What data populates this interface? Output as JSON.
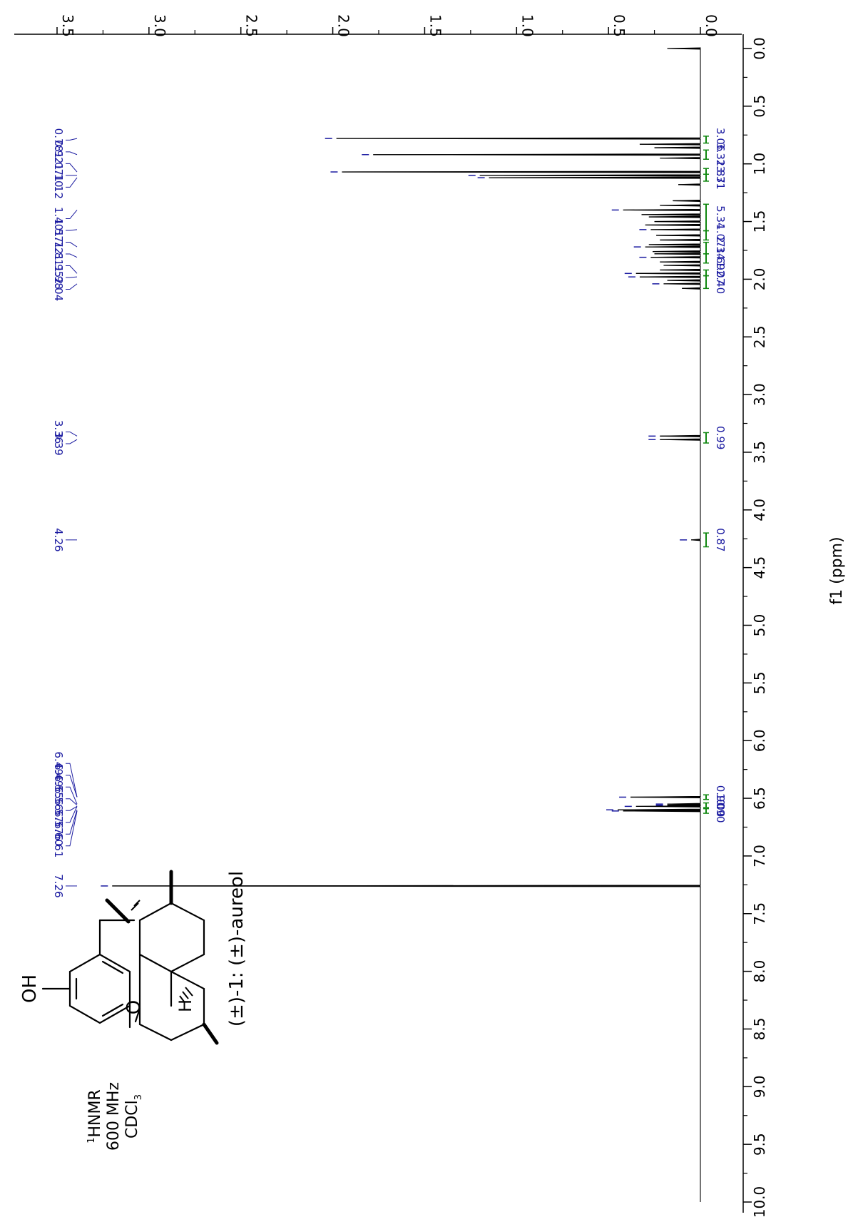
{
  "chart_data": {
    "type": "line",
    "orientation": "rotated-90-clockwise",
    "xlabel": "f1 (ppm)",
    "x_range": [
      0,
      10
    ],
    "x_ticks": [
      "0.0",
      "0.5",
      "1.0",
      "1.5",
      "2.0",
      "2.5",
      "3.0",
      "3.5",
      "4.0",
      "4.5",
      "5.0",
      "5.5",
      "6.0",
      "6.5",
      "7.0",
      "7.5",
      "8.0",
      "8.5",
      "9.0",
      "9.5",
      "10.0"
    ],
    "y_range": [
      0,
      3.5
    ],
    "y_ticks": [
      "0.0",
      "0.5",
      "1.0",
      "1.5",
      "2.0",
      "2.5",
      "3.0",
      "3.5"
    ],
    "peak_labels": [
      {
        "group": "g1",
        "values": [
          "0.78",
          "0.92",
          "1.07",
          "1.10",
          "1.12"
        ],
        "x": [
          0.78,
          0.92,
          1.07,
          1.1,
          1.12
        ]
      },
      {
        "group": "g2",
        "values": [
          "1.40",
          "1.57",
          "1.72",
          "1.81",
          "1.95",
          "1.98",
          "2.04"
        ],
        "x": [
          1.4,
          1.57,
          1.72,
          1.81,
          1.95,
          1.98,
          2.04
        ]
      },
      {
        "group": "g3",
        "values": [
          "3.36",
          "3.39"
        ],
        "x": [
          3.36,
          3.39
        ]
      },
      {
        "group": "g4",
        "values": [
          "4.26"
        ],
        "x": [
          4.26
        ]
      },
      {
        "group": "g5",
        "values": [
          "6.49",
          "6.49",
          "6.55",
          "6.56",
          "6.57",
          "6.57",
          "6.60",
          "6.61"
        ],
        "x": [
          6.49,
          6.49,
          6.55,
          6.56,
          6.57,
          6.57,
          6.6,
          6.61
        ]
      },
      {
        "group": "g6",
        "values": [
          "7.26"
        ],
        "x": [
          7.26
        ]
      }
    ],
    "integrals": [
      {
        "value": "3.06",
        "range": [
          0.76,
          0.82
        ]
      },
      {
        "value": "3.31",
        "range": [
          0.88,
          0.96
        ]
      },
      {
        "value": "2.87",
        "range": [
          1.04,
          1.09
        ]
      },
      {
        "value": "3.31",
        "range": [
          1.09,
          1.15
        ]
      },
      {
        "value": "5.34",
        "range": [
          1.35,
          1.58
        ]
      },
      {
        "value": "1.07",
        "range": [
          1.58,
          1.66
        ]
      },
      {
        "value": "2.34",
        "range": [
          1.68,
          1.78
        ]
      },
      {
        "value": "1.69",
        "range": [
          1.78,
          1.86
        ]
      },
      {
        "value": "1.07",
        "range": [
          1.92,
          1.97
        ]
      },
      {
        "value": "2.40",
        "range": [
          1.97,
          2.08
        ]
      },
      {
        "value": "0.99",
        "range": [
          3.33,
          3.42
        ]
      },
      {
        "value": "0.87",
        "range": [
          4.2,
          4.32
        ]
      },
      {
        "value": "0.90",
        "range": [
          6.47,
          6.51
        ]
      },
      {
        "value": "1.00",
        "range": [
          6.54,
          6.58
        ]
      },
      {
        "value": "0.90",
        "range": [
          6.59,
          6.63
        ]
      }
    ],
    "peaks": [
      {
        "x": 0.0,
        "y": 0.18
      },
      {
        "x": 0.78,
        "y": 1.98
      },
      {
        "x": 0.83,
        "y": 0.33
      },
      {
        "x": 0.86,
        "y": 0.25
      },
      {
        "x": 0.92,
        "y": 1.78
      },
      {
        "x": 0.95,
        "y": 0.22
      },
      {
        "x": 1.07,
        "y": 1.95
      },
      {
        "x": 1.1,
        "y": 1.2
      },
      {
        "x": 1.12,
        "y": 1.15
      },
      {
        "x": 1.18,
        "y": 0.12
      },
      {
        "x": 1.32,
        "y": 0.15
      },
      {
        "x": 1.36,
        "y": 0.22
      },
      {
        "x": 1.4,
        "y": 0.42
      },
      {
        "x": 1.44,
        "y": 0.32
      },
      {
        "x": 1.46,
        "y": 0.28
      },
      {
        "x": 1.5,
        "y": 0.25
      },
      {
        "x": 1.53,
        "y": 0.3
      },
      {
        "x": 1.57,
        "y": 0.27
      },
      {
        "x": 1.62,
        "y": 0.24
      },
      {
        "x": 1.66,
        "y": 0.22
      },
      {
        "x": 1.7,
        "y": 0.28
      },
      {
        "x": 1.72,
        "y": 0.3
      },
      {
        "x": 1.76,
        "y": 0.26
      },
      {
        "x": 1.78,
        "y": 0.25
      },
      {
        "x": 1.81,
        "y": 0.27
      },
      {
        "x": 1.85,
        "y": 0.22
      },
      {
        "x": 1.88,
        "y": 0.2
      },
      {
        "x": 1.92,
        "y": 0.22
      },
      {
        "x": 1.95,
        "y": 0.35
      },
      {
        "x": 1.98,
        "y": 0.33
      },
      {
        "x": 2.01,
        "y": 0.18
      },
      {
        "x": 2.04,
        "y": 0.2
      },
      {
        "x": 2.08,
        "y": 0.1
      },
      {
        "x": 3.36,
        "y": 0.22
      },
      {
        "x": 3.39,
        "y": 0.22
      },
      {
        "x": 4.26,
        "y": 0.05
      },
      {
        "x": 6.49,
        "y": 0.38
      },
      {
        "x": 6.55,
        "y": 0.18
      },
      {
        "x": 6.56,
        "y": 0.18
      },
      {
        "x": 6.57,
        "y": 0.35
      },
      {
        "x": 6.6,
        "y": 0.45
      },
      {
        "x": 6.61,
        "y": 0.42
      },
      {
        "x": 7.26,
        "y": 3.2
      }
    ],
    "colors": {
      "spectrum": "#000000",
      "peak_labels": "#1a1aa0",
      "integrals": "#118811",
      "axis": "#000000"
    }
  },
  "annotations": {
    "compound_name": "(±)-1: (±)-aureol",
    "hydroxyl_label": "OH",
    "oxygen_label": "O",
    "hydrogen_label": "H",
    "instrument": {
      "nucleus_sup": "1",
      "nucleus": "HNMR",
      "frequency": "600 MHz",
      "solvent_base": "CDCl",
      "solvent_sub": "3"
    }
  }
}
